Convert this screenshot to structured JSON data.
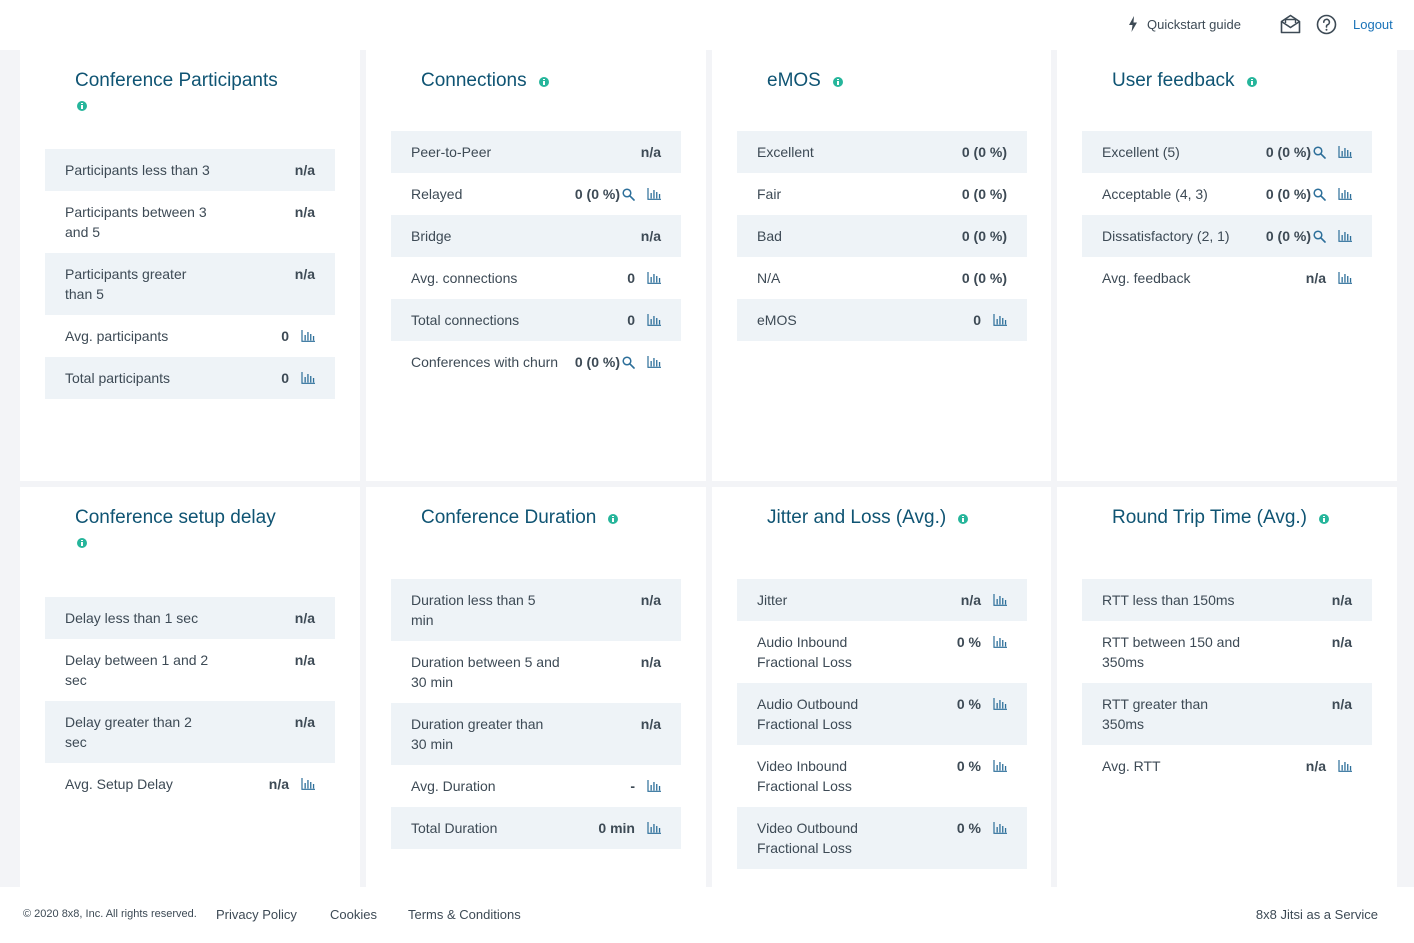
{
  "header": {
    "quickstart_label": "Quickstart guide",
    "logout_label": "Logout"
  },
  "cards": [
    {
      "title": "Conference Participants",
      "rows": [
        {
          "label": "Participants less than 3",
          "value": "n/a",
          "chart": false,
          "search": false
        },
        {
          "label": "Participants between 3 and 5",
          "value": "n/a",
          "chart": false,
          "search": false
        },
        {
          "label": "Participants greater than 5",
          "value": "n/a",
          "chart": false,
          "search": false
        },
        {
          "label": "Avg. participants",
          "value": "0",
          "chart": true,
          "search": false
        },
        {
          "label": "Total participants",
          "value": "0",
          "chart": true,
          "search": false
        }
      ]
    },
    {
      "title": "Connections",
      "rows": [
        {
          "label": "Peer-to-Peer",
          "value": "n/a",
          "chart": false,
          "search": false
        },
        {
          "label": "Relayed",
          "value": "0 (0 %)",
          "chart": true,
          "search": true
        },
        {
          "label": "Bridge",
          "value": "n/a",
          "chart": false,
          "search": false
        },
        {
          "label": "Avg. connections",
          "value": "0",
          "chart": true,
          "search": false
        },
        {
          "label": "Total connections",
          "value": "0",
          "chart": true,
          "search": false
        },
        {
          "label": "Conferences with churn",
          "value": "0 (0 %)",
          "chart": true,
          "search": true
        }
      ]
    },
    {
      "title": "eMOS",
      "rows": [
        {
          "label": "Excellent",
          "value": "0 (0 %)",
          "chart": false,
          "search": false
        },
        {
          "label": "Fair",
          "value": "0 (0 %)",
          "chart": false,
          "search": false
        },
        {
          "label": "Bad",
          "value": "0 (0 %)",
          "chart": false,
          "search": false
        },
        {
          "label": "N/A",
          "value": "0 (0 %)",
          "chart": false,
          "search": false
        },
        {
          "label": "eMOS",
          "value": "0",
          "chart": true,
          "search": false
        }
      ]
    },
    {
      "title": "User feedback",
      "rows": [
        {
          "label": "Excellent (5)",
          "value": "0 (0 %)",
          "chart": true,
          "search": true
        },
        {
          "label": "Acceptable (4, 3)",
          "value": "0 (0 %)",
          "chart": true,
          "search": true
        },
        {
          "label": "Dissatisfactory (2, 1)",
          "value": "0 (0 %)",
          "chart": true,
          "search": true
        },
        {
          "label": "Avg. feedback",
          "value": "n/a",
          "chart": true,
          "search": false
        }
      ]
    },
    {
      "title": "Conference setup delay",
      "rows": [
        {
          "label": "Delay less than 1 sec",
          "value": "n/a",
          "chart": false,
          "search": false
        },
        {
          "label": "Delay between 1 and 2 sec",
          "value": "n/a",
          "chart": false,
          "search": false
        },
        {
          "label": "Delay greater than 2 sec",
          "value": "n/a",
          "chart": false,
          "search": false
        },
        {
          "label": "Avg. Setup Delay",
          "value": "n/a",
          "chart": true,
          "search": false
        }
      ]
    },
    {
      "title": "Conference Duration",
      "rows": [
        {
          "label": "Duration less than 5 min",
          "value": "n/a",
          "chart": false,
          "search": false
        },
        {
          "label": "Duration between 5 and 30 min",
          "value": "n/a",
          "chart": false,
          "search": false
        },
        {
          "label": "Duration greater than 30 min",
          "value": "n/a",
          "chart": false,
          "search": false
        },
        {
          "label": "Avg. Duration",
          "value": "-",
          "chart": true,
          "search": false
        },
        {
          "label": "Total Duration",
          "value": "0 min",
          "chart": true,
          "search": false
        }
      ]
    },
    {
      "title": "Jitter and Loss (Avg.)",
      "rows": [
        {
          "label": "Jitter",
          "value": "n/a",
          "chart": true,
          "search": false
        },
        {
          "label": "Audio Inbound Fractional Loss",
          "value": "0 %",
          "chart": true,
          "search": false
        },
        {
          "label": "Audio Outbound Fractional Loss",
          "value": "0 %",
          "chart": true,
          "search": false
        },
        {
          "label": "Video Inbound Fractional Loss",
          "value": "0 %",
          "chart": true,
          "search": false
        },
        {
          "label": "Video Outbound Fractional Loss",
          "value": "0 %",
          "chart": true,
          "search": false
        }
      ]
    },
    {
      "title": "Round Trip Time (Avg.)",
      "rows": [
        {
          "label": "RTT less than 150ms",
          "value": "n/a",
          "chart": false,
          "search": false
        },
        {
          "label": "RTT between 150 and 350ms",
          "value": "n/a",
          "chart": false,
          "search": false
        },
        {
          "label": "RTT greater than 350ms",
          "value": "n/a",
          "chart": false,
          "search": false
        },
        {
          "label": "Avg. RTT",
          "value": "n/a",
          "chart": true,
          "search": false
        }
      ]
    }
  ],
  "footer": {
    "copyright": "© 2020 8x8, Inc. All rights reserved.",
    "links": [
      "Privacy Policy",
      "Cookies",
      "Terms & Conditions"
    ],
    "brand": "8x8 Jitsi as a Service"
  },
  "colors": {
    "title": "#0f5473",
    "info_dot": "#26b59b",
    "link": "#1a73b8",
    "row_alt": "#eef3f7",
    "icon": "#2d6f9a"
  }
}
